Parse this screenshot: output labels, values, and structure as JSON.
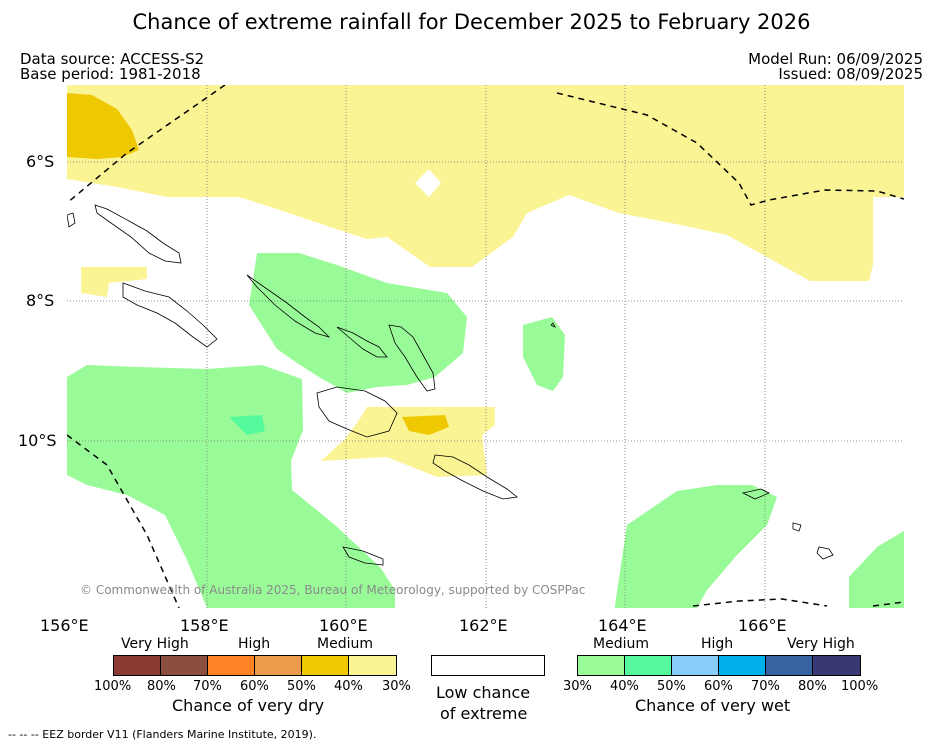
{
  "title": "Chance of extreme rainfall for December 2025 to February 2026",
  "data_source": "Data source: ACCESS-S2",
  "base_period": "Base period: 1981-2018",
  "model_run": "Model Run: 06/09/2025",
  "issued": "Issued: 08/09/2025",
  "copyright": "© Commonwealth of Australia 2025, Bureau of Meteorology, supported by COSPPac",
  "eez_note": "--  --  -- EEZ border V11 (Flanders Marine Institute, 2019).",
  "lat_labels": [
    "6°S",
    "8°S",
    "10°S"
  ],
  "lon_labels": [
    "156°E",
    "158°E",
    "160°E",
    "162°E",
    "164°E",
    "166°E"
  ],
  "legend_dry": {
    "categories": [
      "Very High",
      "High",
      "Medium"
    ],
    "ticks": [
      "100%",
      "80%",
      "70%",
      "60%",
      "50%",
      "40%",
      "30%"
    ],
    "colors": [
      "#8b3a34",
      "#8c4e3f",
      "#ff8224",
      "#ee9a4d",
      "#eec902",
      "#fbf494"
    ],
    "label": "Chance of very dry"
  },
  "legend_low": {
    "label_line1": "Low chance",
    "label_line2": "of extreme",
    "color": "#ffffff"
  },
  "legend_wet": {
    "categories": [
      "Medium",
      "High",
      "Very High"
    ],
    "ticks": [
      "30%",
      "40%",
      "50%",
      "60%",
      "70%",
      "80%",
      "100%"
    ],
    "colors": [
      "#99fb98",
      "#55fa9d",
      "#86cdfa",
      "#01b1ec",
      "#3863a3",
      "#393873"
    ],
    "label": "Chance of very wet"
  }
}
